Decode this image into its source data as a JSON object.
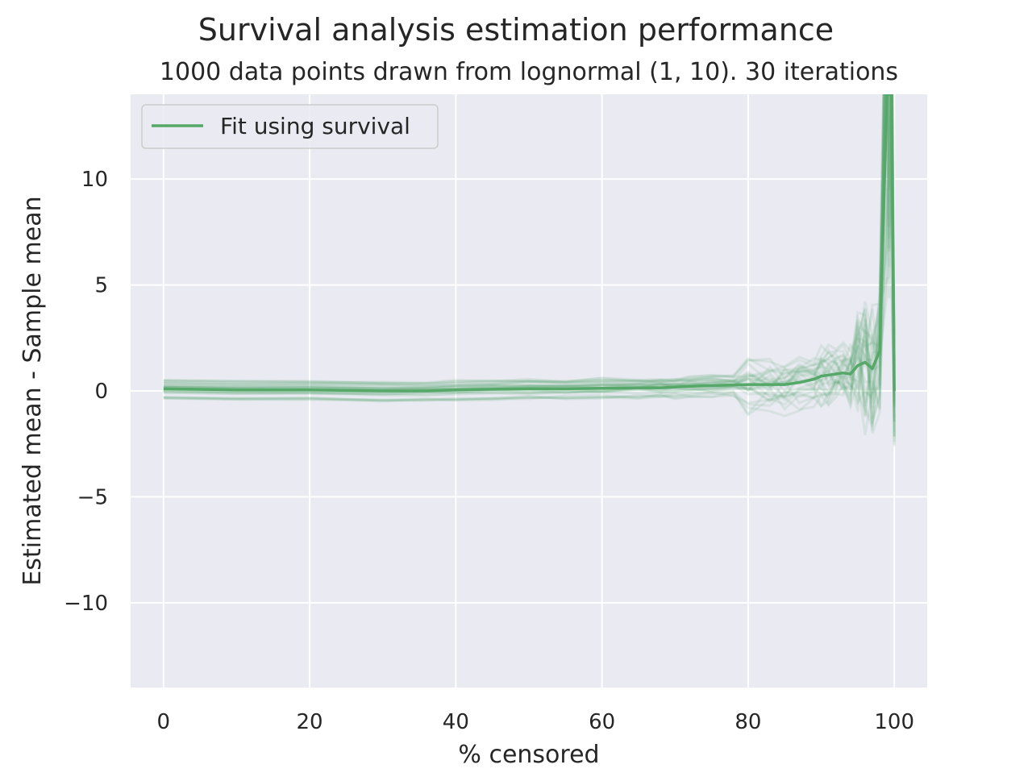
{
  "chart_data": {
    "type": "line",
    "title": "Survival analysis estimation performance",
    "subtitle": "1000 data points drawn from lognormal (1, 10). 30 iterations",
    "xlabel": "% censored",
    "ylabel": "Estimated mean - Sample mean",
    "xlim": [
      -4.5,
      104.5
    ],
    "ylim": [
      -14,
      14
    ],
    "xticks": [
      0,
      20,
      40,
      60,
      80,
      100
    ],
    "xtick_labels": [
      "0",
      "20",
      "40",
      "60",
      "80",
      "100"
    ],
    "yticks": [
      -10,
      -5,
      0,
      5,
      10
    ],
    "ytick_labels": [
      "−10",
      "−5",
      "0",
      "5",
      "10"
    ],
    "grid": true,
    "legend_position": "upper left",
    "colors": {
      "background": "#eaeaf2",
      "grid": "#ffffff",
      "series": "#55a868"
    },
    "series": [
      {
        "name": "Fit using survival",
        "x": [
          0,
          10,
          20,
          30,
          36,
          40,
          45,
          50,
          55,
          60,
          65,
          68,
          70,
          72,
          75,
          78,
          80,
          83,
          85,
          87,
          89,
          90,
          91,
          92,
          93,
          94,
          95,
          96,
          97,
          98,
          99,
          99.3,
          99.6,
          100
        ],
        "y": [
          0.1,
          0.05,
          0.05,
          0.0,
          0.0,
          0.05,
          0.08,
          0.1,
          0.1,
          0.12,
          0.15,
          0.15,
          0.18,
          0.22,
          0.25,
          0.28,
          0.3,
          0.3,
          0.3,
          0.4,
          0.55,
          0.7,
          0.75,
          0.8,
          0.85,
          0.8,
          1.2,
          1.35,
          1.05,
          1.9,
          14,
          14,
          14,
          0
        ]
      }
    ],
    "faint_iterations": {
      "count": 30,
      "opacity": 0.12
    }
  }
}
